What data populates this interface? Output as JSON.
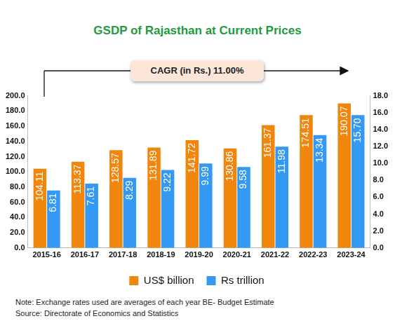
{
  "chart_data": {
    "type": "bar",
    "title": "GSDP of Rajasthan at Current Prices",
    "annotations": [
      "CAGR (in Rs.) 11.00%"
    ],
    "notes": [
      "Note: Exchange rates used are averages of each year BE- Budget Estimate",
      "Source: Directorate of Economics and Statistics"
    ],
    "categories": [
      "2015-16",
      "2016-17",
      "2017-18",
      "2018-19",
      "2019-20",
      "2020-21",
      "2021-22",
      "2022-23",
      "2023-24"
    ],
    "series": [
      {
        "name": "US$ billion",
        "color": "#f0870c",
        "values": [
          104.11,
          113.37,
          128.57,
          131.89,
          141.72,
          130.86,
          161.37,
          174.51,
          190.07
        ]
      },
      {
        "name": "Rs trillion",
        "color": "#3399f3",
        "axis": "y2",
        "values": [
          6.81,
          7.61,
          8.29,
          9.22,
          9.99,
          9.58,
          11.98,
          13.34,
          15.7
        ],
        "value_labels": [
          "6.81",
          "7.61",
          "8.29",
          "9.22",
          "9.99",
          "9.58",
          "11.98",
          "13.34",
          "15.70"
        ]
      }
    ],
    "ylim": [
      0,
      200
    ],
    "yticks": [
      {
        "value": 0,
        "label": "0.0"
      },
      {
        "value": 20,
        "label": "20.0"
      },
      {
        "value": 40,
        "label": "40.0"
      },
      {
        "value": 60,
        "label": "60.0"
      },
      {
        "value": 80,
        "label": "80.0"
      },
      {
        "value": 100,
        "label": "100.0"
      },
      {
        "value": 120,
        "label": "120.0"
      },
      {
        "value": 140,
        "label": "140.0"
      },
      {
        "value": 160,
        "label": "160.0"
      },
      {
        "value": 180,
        "label": "180.0"
      },
      {
        "value": 200,
        "label": "200.0"
      }
    ],
    "y2lim": [
      0,
      18
    ],
    "y2ticks": [
      {
        "value": 0,
        "label": "0.0"
      },
      {
        "value": 2,
        "label": "2.0"
      },
      {
        "value": 4,
        "label": "4.0"
      },
      {
        "value": 6,
        "label": "6.0"
      },
      {
        "value": 8,
        "label": "8.0"
      },
      {
        "value": 10,
        "label": "10.0"
      },
      {
        "value": 12,
        "label": "12.0"
      },
      {
        "value": 14,
        "label": "14.0"
      },
      {
        "value": 16,
        "label": "16.0"
      },
      {
        "value": 18,
        "label": "18.0"
      }
    ],
    "grid": false,
    "legend": "bottom",
    "data_labels": true
  }
}
